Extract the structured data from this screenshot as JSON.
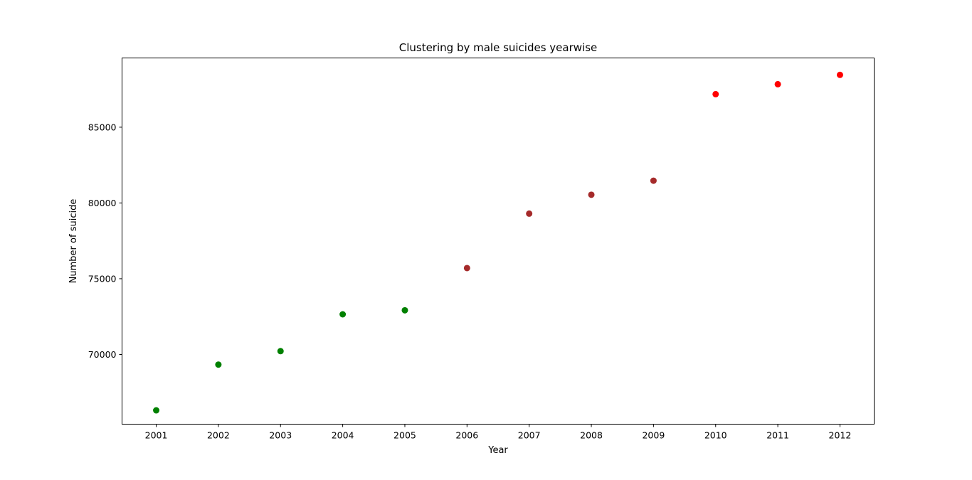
{
  "chart_data": {
    "type": "scatter",
    "title": "Clustering by male suicides yearwise",
    "xlabel": "Year",
    "ylabel": "Number of suicide",
    "x_ticks": [
      "2001",
      "2002",
      "2003",
      "2004",
      "2005",
      "2006",
      "2007",
      "2008",
      "2009",
      "2010",
      "2011",
      "2012"
    ],
    "y_ticks": [
      70000,
      75000,
      80000,
      85000
    ],
    "y_tick_labels": [
      "70000",
      "75000",
      "80000",
      "85000"
    ],
    "xlim": [
      2000.45,
      2012.55
    ],
    "ylim": [
      65400,
      89570
    ],
    "grid": false,
    "points": [
      {
        "x": 2001,
        "y": 66314,
        "color": "#008000"
      },
      {
        "x": 2002,
        "y": 69332,
        "color": "#008000"
      },
      {
        "x": 2003,
        "y": 70221,
        "color": "#008000"
      },
      {
        "x": 2004,
        "y": 72651,
        "color": "#008000"
      },
      {
        "x": 2005,
        "y": 72916,
        "color": "#008000"
      },
      {
        "x": 2006,
        "y": 75702,
        "color": "#a52a2a"
      },
      {
        "x": 2007,
        "y": 79295,
        "color": "#a52a2a"
      },
      {
        "x": 2008,
        "y": 80544,
        "color": "#a52a2a"
      },
      {
        "x": 2009,
        "y": 81471,
        "color": "#a52a2a"
      },
      {
        "x": 2010,
        "y": 87180,
        "color": "#ff0000"
      },
      {
        "x": 2011,
        "y": 87839,
        "color": "#ff0000"
      },
      {
        "x": 2012,
        "y": 88453,
        "color": "#ff0000"
      }
    ]
  }
}
